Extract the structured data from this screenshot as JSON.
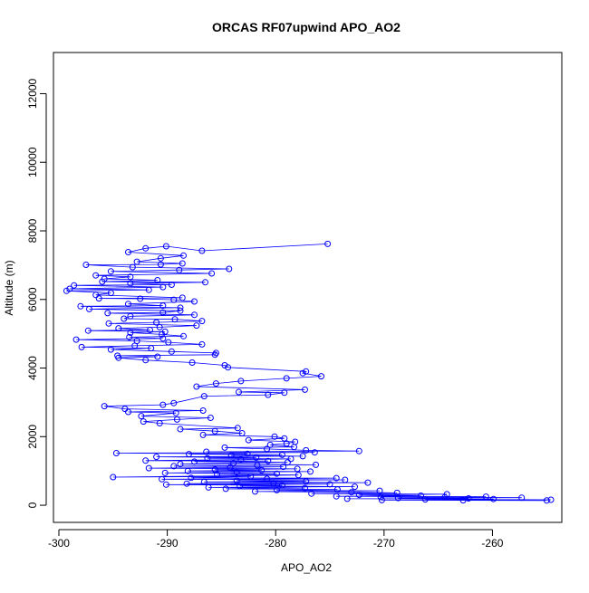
{
  "chart_data": {
    "type": "line",
    "title": "ORCAS RF07upwind APO_AO2",
    "xlabel": "APO_AO2",
    "ylabel": "Altitude (m)",
    "xlim": [
      -300.5,
      -253.6
    ],
    "ylim": [
      -500,
      13200
    ],
    "x_ticks": [
      -300,
      -290,
      -280,
      -270,
      -260
    ],
    "y_ticks": [
      0,
      2000,
      4000,
      6000,
      8000,
      10000,
      12000
    ],
    "grid": false,
    "legend": "none",
    "colors": {
      "series": "#0000ff",
      "axis": "#000000",
      "background": "#ffffff"
    },
    "marker": "open-circle",
    "series": [
      {
        "points": [
          [
            -275.2,
            7620
          ],
          [
            -286.8,
            7420
          ],
          [
            -290.1,
            7550
          ],
          [
            -292.0,
            7490
          ],
          [
            -293.6,
            7380
          ],
          [
            -288.5,
            7280
          ],
          [
            -290.6,
            7200
          ],
          [
            -292.8,
            7100
          ],
          [
            -288.6,
            7050
          ],
          [
            -290.6,
            7020
          ],
          [
            -297.5,
            7010
          ],
          [
            -293.2,
            6940
          ],
          [
            -284.3,
            6890
          ],
          [
            -288.9,
            6860
          ],
          [
            -295.2,
            6820
          ],
          [
            -285.9,
            6760
          ],
          [
            -296.6,
            6700
          ],
          [
            -293.4,
            6660
          ],
          [
            -295.8,
            6600
          ],
          [
            -290.9,
            6560
          ],
          [
            -296.0,
            6520
          ],
          [
            -286.5,
            6500
          ],
          [
            -293.4,
            6470
          ],
          [
            -289.6,
            6430
          ],
          [
            -298.6,
            6410
          ],
          [
            -290.4,
            6360
          ],
          [
            -299.0,
            6310
          ],
          [
            -291.7,
            6280
          ],
          [
            -299.3,
            6250
          ],
          [
            -295.2,
            6190
          ],
          [
            -296.6,
            6130
          ],
          [
            -288.6,
            6050
          ],
          [
            -296.3,
            6030
          ],
          [
            -292.5,
            6020
          ],
          [
            -289.4,
            5990
          ],
          [
            -287.5,
            5940
          ],
          [
            -293.6,
            5870
          ],
          [
            -290.4,
            5820
          ],
          [
            -298.0,
            5800
          ],
          [
            -288.8,
            5760
          ],
          [
            -297.2,
            5720
          ],
          [
            -288.8,
            5670
          ],
          [
            -290.4,
            5620
          ],
          [
            -295.5,
            5600
          ],
          [
            -287.5,
            5550
          ],
          [
            -293.4,
            5510
          ],
          [
            -294.0,
            5440
          ],
          [
            -289.3,
            5420
          ],
          [
            -286.8,
            5370
          ],
          [
            -291.0,
            5330
          ],
          [
            -295.4,
            5300
          ],
          [
            -287.3,
            5240
          ],
          [
            -290.7,
            5190
          ],
          [
            -294.5,
            5160
          ],
          [
            -291.6,
            5110
          ],
          [
            -297.3,
            5090
          ],
          [
            -290.2,
            5060
          ],
          [
            -293.4,
            5030
          ],
          [
            -290.5,
            4980
          ],
          [
            -288.5,
            4930
          ],
          [
            -293.5,
            4900
          ],
          [
            -290.4,
            4860
          ],
          [
            -298.4,
            4830
          ],
          [
            -292.8,
            4790
          ],
          [
            -289.9,
            4750
          ],
          [
            -286.8,
            4690
          ],
          [
            -293.0,
            4650
          ],
          [
            -297.9,
            4610
          ],
          [
            -291.5,
            4580
          ],
          [
            -295.2,
            4540
          ],
          [
            -289.6,
            4480
          ],
          [
            -285.5,
            4440
          ],
          [
            -285.6,
            4390
          ],
          [
            -294.6,
            4360
          ],
          [
            -290.9,
            4330
          ],
          [
            -294.5,
            4300
          ],
          [
            -292.0,
            4230
          ],
          [
            -287.7,
            4160
          ],
          [
            -284.7,
            4080
          ],
          [
            -284.4,
            4020
          ],
          [
            -277.2,
            3900
          ],
          [
            -277.5,
            3850
          ],
          [
            -275.8,
            3760
          ],
          [
            -279.0,
            3700
          ],
          [
            -283.2,
            3620
          ],
          [
            -285.5,
            3550
          ],
          [
            -287.3,
            3460
          ],
          [
            -277.3,
            3370
          ],
          [
            -283.4,
            3300
          ],
          [
            -279.2,
            3280
          ],
          [
            -280.7,
            3220
          ],
          [
            -286.6,
            3180
          ],
          [
            -289.4,
            2980
          ],
          [
            -290.4,
            2930
          ],
          [
            -295.8,
            2890
          ],
          [
            -293.9,
            2810
          ],
          [
            -286.7,
            2760
          ],
          [
            -293.6,
            2720
          ],
          [
            -289.2,
            2690
          ],
          [
            -292.4,
            2600
          ],
          [
            -286.0,
            2550
          ],
          [
            -289.1,
            2500
          ],
          [
            -292.2,
            2440
          ],
          [
            -290.7,
            2390
          ],
          [
            -283.5,
            2250
          ],
          [
            -288.8,
            2220
          ],
          [
            -285.6,
            2160
          ],
          [
            -283.1,
            2100
          ],
          [
            -286.7,
            2050
          ],
          [
            -280.1,
            2000
          ],
          [
            -279.2,
            1950
          ],
          [
            -282.5,
            1900
          ],
          [
            -278.2,
            1850
          ],
          [
            -279.0,
            1800
          ],
          [
            -280.5,
            1760
          ],
          [
            -278.3,
            1700
          ],
          [
            -284.7,
            1680
          ],
          [
            -280.8,
            1640
          ],
          [
            -277.2,
            1600
          ],
          [
            -272.3,
            1580
          ],
          [
            -286.4,
            1560
          ],
          [
            -276.4,
            1540
          ],
          [
            -294.7,
            1520
          ],
          [
            -282.6,
            1500
          ],
          [
            -288.0,
            1490
          ],
          [
            -279.4,
            1470
          ],
          [
            -284.1,
            1450
          ],
          [
            -277.5,
            1430
          ],
          [
            -291.0,
            1410
          ],
          [
            -281.8,
            1390
          ],
          [
            -286.3,
            1370
          ],
          [
            -278.6,
            1350
          ],
          [
            -283.2,
            1330
          ],
          [
            -292.0,
            1300
          ],
          [
            -280.7,
            1290
          ],
          [
            -287.5,
            1270
          ],
          [
            -278.9,
            1250
          ],
          [
            -283.9,
            1230
          ],
          [
            -288.8,
            1200
          ],
          [
            -276.3,
            1180
          ],
          [
            -281.7,
            1160
          ],
          [
            -289.4,
            1140
          ],
          [
            -279.3,
            1120
          ],
          [
            -284.2,
            1100
          ],
          [
            -291.7,
            1080
          ],
          [
            -278.0,
            1060
          ],
          [
            -285.6,
            1040
          ],
          [
            -281.3,
            1020
          ],
          [
            -288.1,
            1000
          ],
          [
            -276.8,
            980
          ],
          [
            -283.6,
            960
          ],
          [
            -290.2,
            940
          ],
          [
            -279.9,
            920
          ],
          [
            -285.4,
            900
          ],
          [
            -277.9,
            880
          ],
          [
            -295.0,
            820
          ],
          [
            -282.3,
            840
          ],
          [
            -287.8,
            800
          ],
          [
            -274.4,
            790
          ],
          [
            -280.8,
            770
          ],
          [
            -290.5,
            760
          ],
          [
            -273.6,
            740
          ],
          [
            -283.6,
            720
          ],
          [
            -277.2,
            700
          ],
          [
            -286.6,
            680
          ],
          [
            -271.5,
            660
          ],
          [
            -280.2,
            640
          ],
          [
            -288.2,
            630
          ],
          [
            -275.0,
            610
          ],
          [
            -290.1,
            600
          ],
          [
            -279.4,
            580
          ],
          [
            -283.3,
            560
          ],
          [
            -272.7,
            540
          ],
          [
            -286.2,
            520
          ],
          [
            -277.3,
            500
          ],
          [
            -284.6,
            480
          ],
          [
            -274.3,
            460
          ],
          [
            -279.9,
            440
          ],
          [
            -270.4,
            420
          ],
          [
            -281.9,
            400
          ],
          [
            -273.0,
            380
          ],
          [
            -268.8,
            360
          ],
          [
            -276.7,
            340
          ],
          [
            -264.2,
            320
          ],
          [
            -272.3,
            300
          ],
          [
            -266.6,
            280
          ],
          [
            -274.4,
            260
          ],
          [
            -260.6,
            250
          ],
          [
            -270.3,
            240
          ],
          [
            -264.4,
            230
          ],
          [
            -257.3,
            220
          ],
          [
            -268.7,
            210
          ],
          [
            -262.2,
            200
          ],
          [
            -273.4,
            190
          ],
          [
            -259.9,
            180
          ],
          [
            -266.2,
            170
          ],
          [
            -254.6,
            160
          ],
          [
            -270.2,
            150
          ],
          [
            -262.7,
            145
          ],
          [
            -255.0,
            140
          ]
        ]
      }
    ]
  }
}
